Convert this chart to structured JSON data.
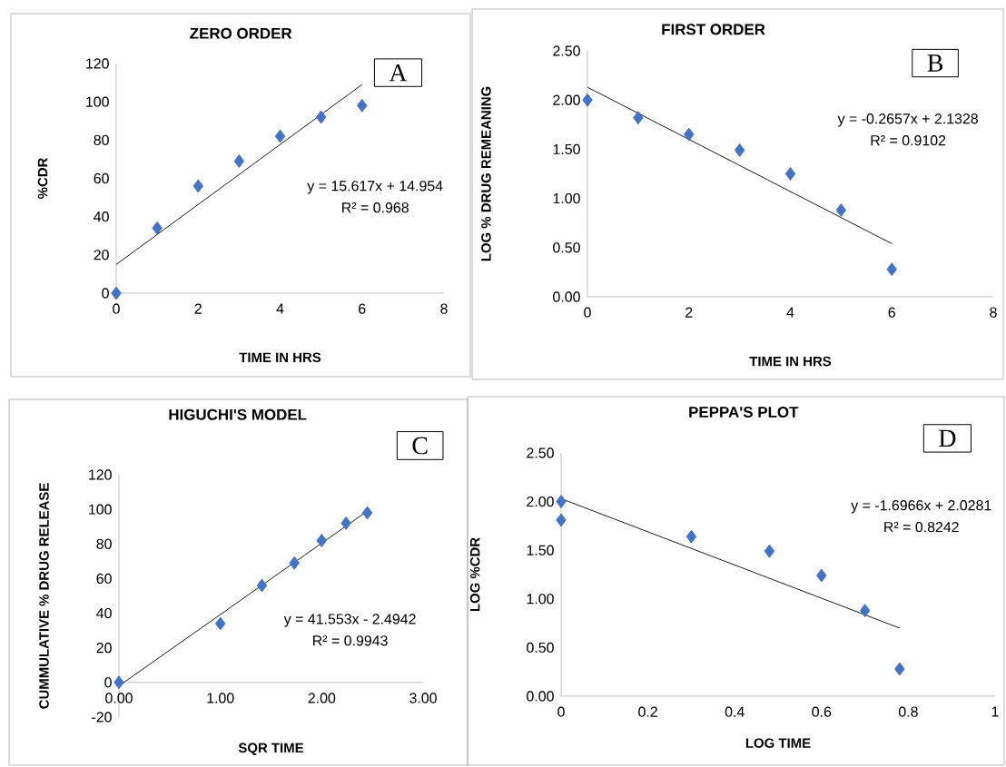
{
  "chart_data": [
    {
      "type": "scatter",
      "title": "ZERO ORDER",
      "xlabel": "TIME IN HRS",
      "ylabel": "%CDR",
      "marker": "diamond",
      "annotations": [
        "A",
        "y = 15.617x + 14.954",
        "R² = 0.968"
      ],
      "xlim": [
        0,
        8
      ],
      "xticks": [
        0,
        2,
        4,
        6,
        8
      ],
      "ylim": [
        0,
        120
      ],
      "yticks": [
        0,
        20,
        40,
        60,
        80,
        100,
        120
      ],
      "series": [
        {
          "color": "#4472c4",
          "x": [
            0,
            1,
            2,
            3,
            4,
            5,
            6
          ],
          "values": [
            0,
            34,
            56,
            69,
            82,
            92,
            98
          ]
        },
        {
          "type": "line",
          "marker": "none",
          "color": "#000000",
          "x": [
            0,
            6
          ],
          "values": [
            15,
            109
          ]
        }
      ]
    },
    {
      "type": "scatter",
      "title": "FIRST ORDER",
      "xlabel": "TIME IN HRS",
      "ylabel": "LOG % DRUG REMEANING",
      "marker": "diamond",
      "annotations": [
        "B",
        "y = -0.2657x + 2.1328",
        "R² = 0.9102"
      ],
      "xlim": [
        0,
        8
      ],
      "xticks": [
        0,
        2,
        4,
        6,
        8
      ],
      "ylim": [
        0,
        2.5
      ],
      "yticks": [
        {
          "value": 0,
          "label": "0.00"
        },
        {
          "value": 0.5,
          "label": "0.50"
        },
        {
          "value": 1,
          "label": "1.00"
        },
        {
          "value": 1.5,
          "label": "1.50"
        },
        {
          "value": 2,
          "label": "2.00"
        },
        {
          "value": 2.5,
          "label": "2.50"
        }
      ],
      "series": [
        {
          "color": "#4472c4",
          "x": [
            0,
            1,
            2,
            3,
            4,
            5,
            6
          ],
          "values": [
            2.0,
            1.82,
            1.65,
            1.49,
            1.25,
            0.88,
            0.28
          ]
        },
        {
          "type": "line",
          "marker": "none",
          "color": "#000000",
          "x": [
            0,
            6
          ],
          "values": [
            2.13,
            0.54
          ]
        }
      ]
    },
    {
      "type": "scatter",
      "title": "HIGUCHI'S MODEL",
      "xlabel": "SQR TIME",
      "ylabel": "CUMMULATIVE % DRUG RELEASE",
      "marker": "diamond",
      "annotations": [
        "C",
        "y = 41.553x - 2.4942",
        "R² = 0.9943"
      ],
      "xlim": [
        0,
        3
      ],
      "xticks": [
        {
          "value": 0,
          "label": "0.00"
        },
        {
          "value": 1,
          "label": "1.00"
        },
        {
          "value": 2,
          "label": "2.00"
        },
        {
          "value": 3,
          "label": "3.00"
        }
      ],
      "ylim": [
        -20,
        120
      ],
      "yticks": [
        -20,
        0,
        20,
        40,
        60,
        80,
        100,
        120
      ],
      "series": [
        {
          "color": "#4472c4",
          "x": [
            0,
            1,
            1.41,
            1.73,
            2,
            2.24,
            2.45
          ],
          "values": [
            0,
            34,
            56,
            69,
            82,
            92,
            98
          ]
        },
        {
          "type": "line",
          "marker": "none",
          "color": "#000000",
          "x": [
            0,
            2.45
          ],
          "values": [
            -2,
            99
          ]
        }
      ]
    },
    {
      "type": "scatter",
      "title": "PEPPA'S PLOT",
      "xlabel": "LOG TIME",
      "ylabel": "LOG %CDR",
      "marker": "diamond",
      "annotations": [
        "D",
        "y = -1.6966x + 2.0281",
        "R² = 0.8242"
      ],
      "xlim": [
        0,
        1
      ],
      "xticks": [
        0,
        0.2,
        0.4,
        0.6,
        0.8,
        1
      ],
      "ylim": [
        0,
        2.5
      ],
      "yticks": [
        {
          "value": 0,
          "label": "0.00"
        },
        {
          "value": 0.5,
          "label": "0.50"
        },
        {
          "value": 1,
          "label": "1.00"
        },
        {
          "value": 1.5,
          "label": "1.50"
        },
        {
          "value": 2,
          "label": "2.00"
        },
        {
          "value": 2.5,
          "label": "2.50"
        }
      ],
      "series": [
        {
          "color": "#4472c4",
          "x": [
            0,
            0,
            0.3,
            0.48,
            0.6,
            0.7,
            0.78
          ],
          "values": [
            2.0,
            1.81,
            1.64,
            1.49,
            1.24,
            0.88,
            0.28
          ]
        },
        {
          "type": "line",
          "marker": "none",
          "color": "#000000",
          "x": [
            0,
            0.78
          ],
          "values": [
            2.03,
            0.7
          ]
        }
      ]
    }
  ]
}
